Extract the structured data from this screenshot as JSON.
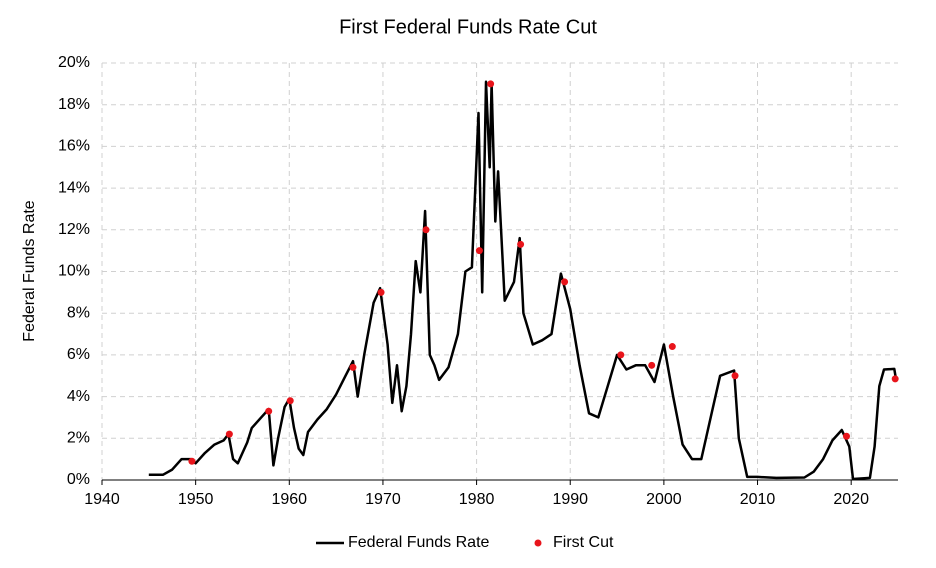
{
  "chart_data": {
    "type": "line",
    "title": "First Federal Funds Rate Cut",
    "y_label": "Federal Funds Rate",
    "xlim": [
      1940,
      2025
    ],
    "xticks": [
      1940,
      1950,
      1960,
      1970,
      1980,
      1990,
      2000,
      2010,
      2020
    ],
    "ylim": [
      0,
      20
    ],
    "yticks": [
      {
        "value": 0,
        "label": "0%"
      },
      {
        "value": 2,
        "label": "2%"
      },
      {
        "value": 4,
        "label": "4%"
      },
      {
        "value": 6,
        "label": "6%"
      },
      {
        "value": 8,
        "label": "8%"
      },
      {
        "value": 10,
        "label": "10%"
      },
      {
        "value": 12,
        "label": "12%"
      },
      {
        "value": 14,
        "label": "14%"
      },
      {
        "value": 16,
        "label": "16%"
      },
      {
        "value": 18,
        "label": "18%"
      },
      {
        "value": 20,
        "label": "20%"
      }
    ],
    "grid": true,
    "legend": "bottom",
    "series": [
      {
        "name": "Federal Funds Rate",
        "type": "line",
        "color": "#000000",
        "x": [
          1945,
          1946.5,
          1947.5,
          1948.5,
          1949.5,
          1950,
          1951,
          1952,
          1953,
          1953.5,
          1954,
          1954.5,
          1955,
          1955.5,
          1956,
          1957,
          1957.8,
          1958.3,
          1958.8,
          1959.5,
          1960,
          1960.5,
          1961,
          1961.5,
          1962,
          1963,
          1964,
          1965,
          1966,
          1966.8,
          1967.3,
          1968,
          1969,
          1969.7,
          1970.5,
          1971,
          1971.5,
          1972,
          1972.5,
          1973,
          1973.5,
          1974,
          1974.5,
          1975,
          1975.5,
          1976,
          1977,
          1978,
          1978.8,
          1979.5,
          1980.2,
          1980.6,
          1981,
          1981.4,
          1981.6,
          1982,
          1982.3,
          1983,
          1984,
          1984.6,
          1985,
          1986,
          1987,
          1988,
          1989,
          1990,
          1991,
          1992,
          1993,
          1994,
          1995,
          1996,
          1997,
          1998,
          1999,
          2000,
          2001,
          2002,
          2003,
          2004,
          2005,
          2006,
          2007.5,
          2008,
          2008.9,
          2010,
          2012,
          2015,
          2016,
          2017,
          2018,
          2019,
          2019.8,
          2020.2,
          2022,
          2022.5,
          2023,
          2023.5,
          2024.6,
          2024.8
        ],
        "values": [
          0.25,
          0.25,
          0.5,
          1.0,
          1.0,
          0.8,
          1.3,
          1.7,
          1.9,
          2.2,
          1.0,
          0.8,
          1.3,
          1.8,
          2.5,
          3.0,
          3.4,
          0.7,
          2.0,
          3.5,
          3.9,
          2.5,
          1.5,
          1.2,
          2.3,
          2.9,
          3.4,
          4.1,
          5.0,
          5.7,
          4.0,
          6.0,
          8.5,
          9.2,
          6.5,
          3.7,
          5.5,
          3.3,
          4.5,
          7.0,
          10.5,
          9.0,
          12.9,
          6.0,
          5.5,
          4.8,
          5.4,
          7.0,
          10.0,
          10.2,
          17.6,
          9.0,
          19.1,
          15.0,
          19.0,
          12.4,
          14.8,
          8.6,
          9.5,
          11.6,
          8.0,
          6.5,
          6.7,
          7.0,
          9.9,
          8.2,
          5.5,
          3.2,
          3.0,
          4.5,
          6.0,
          5.3,
          5.5,
          5.5,
          4.7,
          6.5,
          4.0,
          1.7,
          1.0,
          1.0,
          3.0,
          5.0,
          5.25,
          2.0,
          0.15,
          0.15,
          0.1,
          0.12,
          0.4,
          1.0,
          1.9,
          2.4,
          1.6,
          0.05,
          0.1,
          1.6,
          4.5,
          5.3,
          5.33,
          4.8
        ]
      },
      {
        "name": "First Cut",
        "type": "scatter",
        "color": "#e8141b",
        "x": [
          1949.6,
          1953.6,
          1957.8,
          1960.1,
          1966.8,
          1969.8,
          1974.6,
          1980.3,
          1981.5,
          1984.7,
          1989.4,
          1995.4,
          1998.7,
          2000.9,
          2007.6,
          2019.5,
          2024.7
        ],
        "values": [
          0.9,
          2.2,
          3.3,
          3.8,
          5.4,
          9.0,
          12.0,
          11.0,
          19.0,
          11.3,
          9.5,
          6.0,
          5.5,
          6.4,
          5.0,
          2.1,
          4.85
        ]
      }
    ]
  }
}
